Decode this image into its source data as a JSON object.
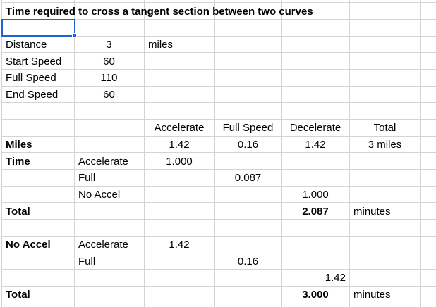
{
  "title": "Time required to cross a tangent section between two curves",
  "params": {
    "rows": [
      {
        "label": "Distance",
        "value": "3",
        "unit": "miles"
      },
      {
        "label": "Start Speed",
        "value": "60"
      },
      {
        "label": "Full Speed",
        "value": "110"
      },
      {
        "label": "End Speed",
        "value": "60"
      }
    ]
  },
  "analysis": {
    "headers": [
      "Accelerate",
      "Full Speed",
      "Decelerate",
      "Total"
    ],
    "miles": {
      "label": "Miles",
      "accelerate": "1.42",
      "full_speed": "0.16",
      "decelerate": "1.42",
      "total": "3 miles"
    },
    "time": {
      "label": "Time",
      "rows": [
        {
          "label": "Accelerate",
          "value": "1.000"
        },
        {
          "label": "Full",
          "value": "0.087"
        },
        {
          "label": "No Accel",
          "value": "1.000"
        }
      ],
      "total": {
        "label": "Total",
        "value": "2.087",
        "unit": "minutes"
      }
    },
    "no_accel": {
      "label": "No Accel",
      "rows": [
        {
          "label": "Accelerate",
          "value": "1.42"
        },
        {
          "label": "Full",
          "value": "0.16"
        },
        {
          "label": "",
          "value": "1.42"
        }
      ],
      "total": {
        "label": "Total",
        "value": "3.000",
        "unit": "minutes"
      }
    }
  }
}
